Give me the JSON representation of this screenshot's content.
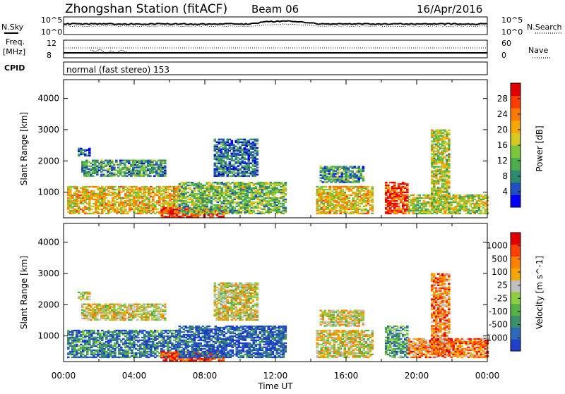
{
  "title": {
    "station": "Zhongshan Station (fitACF)",
    "beam": "Beam 06",
    "date": "16/Apr/2016"
  },
  "top_panels": {
    "nsky_label": "N.Sky",
    "nsky_ticks": [
      "10^5",
      "10^0"
    ],
    "nsearch_label": "N.Search",
    "nsearch_ticks": [
      "10^5",
      "10^0"
    ],
    "freq_label": "Freq.",
    "freq_unit": "[MHz]",
    "freq_ticks": [
      "12",
      "8"
    ],
    "nave_label": "Nave",
    "nave_ticks": [
      "60",
      "0"
    ],
    "cpid_label": "CPID",
    "cpid_text": "normal (fast stereo) 153"
  },
  "chart_data": [
    {
      "type": "heatmap",
      "name": "power",
      "ylabel": "Slant Range [km]",
      "yticks": [
        1000,
        2000,
        3000,
        4000
      ],
      "ylim": [
        180,
        4600
      ],
      "xlim": [
        0,
        24
      ],
      "colorbar": {
        "label": "Power [dB]",
        "ticks": [
          "28",
          "24",
          "20",
          "16",
          "12",
          "8",
          "4"
        ],
        "colors": [
          "#0000ff",
          "#1f4fc0",
          "#2f8b6f",
          "#4fae4a",
          "#7cc63b",
          "#d6c924",
          "#f6a800",
          "#ff7a00",
          "#ff3b00",
          "#e00000"
        ]
      },
      "regions": [
        {
          "t0": 0.2,
          "t1": 6.5,
          "r0": 300,
          "r1": 1200,
          "level": 0.6
        },
        {
          "t0": 1.0,
          "t1": 5.8,
          "r0": 1500,
          "r1": 2000,
          "level": 0.3
        },
        {
          "t0": 0.8,
          "t1": 1.5,
          "r0": 2150,
          "r1": 2400,
          "level": 0.15
        },
        {
          "t0": 5.5,
          "t1": 9.0,
          "r0": 200,
          "r1": 500,
          "level": 0.9
        },
        {
          "t0": 6.5,
          "t1": 12.5,
          "r0": 300,
          "r1": 1300,
          "level": 0.4
        },
        {
          "t0": 8.5,
          "t1": 11.0,
          "r0": 1500,
          "r1": 2700,
          "level": 0.2
        },
        {
          "t0": 14.3,
          "t1": 17.5,
          "r0": 300,
          "r1": 1200,
          "level": 0.6
        },
        {
          "t0": 14.5,
          "t1": 17.0,
          "r0": 1300,
          "r1": 1800,
          "level": 0.3
        },
        {
          "t0": 18.2,
          "t1": 19.5,
          "r0": 300,
          "r1": 1300,
          "level": 0.85
        },
        {
          "t0": 19.5,
          "t1": 24.0,
          "r0": 300,
          "r1": 900,
          "level": 0.5
        },
        {
          "t0": 20.8,
          "t1": 21.8,
          "r0": 400,
          "r1": 3000,
          "level": 0.5
        }
      ]
    },
    {
      "type": "heatmap",
      "name": "velocity",
      "ylabel": "Slant Range [km]",
      "yticks": [
        1000,
        2000,
        3000,
        4000
      ],
      "ylim": [
        180,
        4600
      ],
      "xlim": [
        0,
        24
      ],
      "xlabel": "Time UT",
      "xticks": [
        "00:00",
        "04:00",
        "08:00",
        "12:00",
        "16:00",
        "20:00",
        "00:00"
      ],
      "colorbar": {
        "label": "Velocity [m s^-1]",
        "ticks": [
          "1000",
          "500",
          "100",
          "25",
          "-25",
          "-100",
          "-500",
          "-1000"
        ],
        "colors": [
          "#1f3fc8",
          "#2c69b8",
          "#3b8f69",
          "#55b148",
          "#8ecf42",
          "#c0c0c0",
          "#f7a800",
          "#ff7f00",
          "#ff4000",
          "#e00000"
        ]
      },
      "regions": [
        {
          "t0": 0.2,
          "t1": 6.5,
          "r0": 300,
          "r1": 1200,
          "level": 0.2
        },
        {
          "t0": 1.0,
          "t1": 5.8,
          "r0": 1500,
          "r1": 2000,
          "level": 0.55
        },
        {
          "t0": 0.8,
          "t1": 1.5,
          "r0": 2150,
          "r1": 2400,
          "level": 0.55
        },
        {
          "t0": 5.5,
          "t1": 9.0,
          "r0": 200,
          "r1": 500,
          "level": 0.9
        },
        {
          "t0": 6.5,
          "t1": 12.5,
          "r0": 300,
          "r1": 1300,
          "level": 0.1
        },
        {
          "t0": 8.5,
          "t1": 11.0,
          "r0": 1500,
          "r1": 2700,
          "level": 0.55
        },
        {
          "t0": 14.3,
          "t1": 17.5,
          "r0": 300,
          "r1": 1200,
          "level": 0.55
        },
        {
          "t0": 14.5,
          "t1": 17.0,
          "r0": 1300,
          "r1": 1800,
          "level": 0.55
        },
        {
          "t0": 18.2,
          "t1": 19.5,
          "r0": 300,
          "r1": 1300,
          "level": 0.3
        },
        {
          "t0": 19.5,
          "t1": 24.0,
          "r0": 300,
          "r1": 900,
          "level": 0.75
        },
        {
          "t0": 20.8,
          "t1": 21.8,
          "r0": 400,
          "r1": 3000,
          "level": 0.75
        }
      ]
    }
  ]
}
